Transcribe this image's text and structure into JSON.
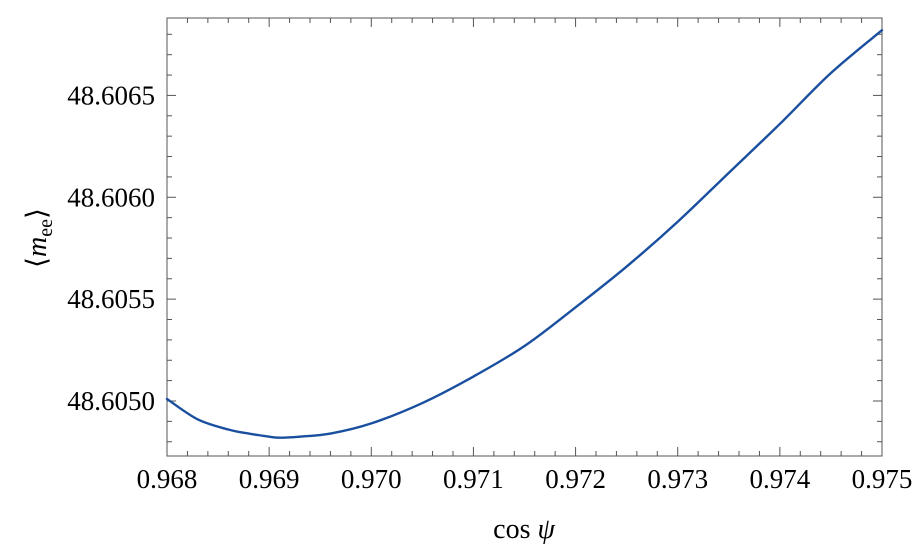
{
  "chart_data": {
    "type": "line",
    "xlabel": "cos ψ",
    "ylabel": "⟨m_ee⟩",
    "ylabel_parts": {
      "open": "⟨",
      "var": "m",
      "sub": "ee",
      "close": "⟩"
    },
    "xlabel_parts": {
      "fn": "cos",
      "var": "ψ"
    },
    "xlim": [
      0.968,
      0.975
    ],
    "ylim": [
      48.60473,
      48.60688
    ],
    "xticks": [
      0.968,
      0.969,
      0.97,
      0.971,
      0.972,
      0.973,
      0.974,
      0.975
    ],
    "xtick_labels": [
      "0.968",
      "0.969",
      "0.970",
      "0.971",
      "0.972",
      "0.973",
      "0.974",
      "0.975"
    ],
    "yticks": [
      48.605,
      48.6055,
      48.606,
      48.6065
    ],
    "ytick_labels": [
      "48.6050",
      "48.6055",
      "48.6060",
      "48.6065"
    ],
    "grid": false,
    "series": [
      {
        "color": "#1a4fa0",
        "x": [
          0.968,
          0.9683,
          0.9686,
          0.9688,
          0.969,
          0.9691,
          0.9693,
          0.9696,
          0.97,
          0.9705,
          0.971,
          0.9715,
          0.972,
          0.9725,
          0.973,
          0.9735,
          0.974,
          0.9745,
          0.975
        ],
        "y": [
          48.60501,
          48.60491,
          48.60486,
          48.60484,
          48.604825,
          48.60482,
          48.604825,
          48.60484,
          48.60489,
          48.60499,
          48.60512,
          48.60527,
          48.60546,
          48.60566,
          48.60588,
          48.60612,
          48.60636,
          48.60661,
          48.60682
        ]
      }
    ]
  }
}
